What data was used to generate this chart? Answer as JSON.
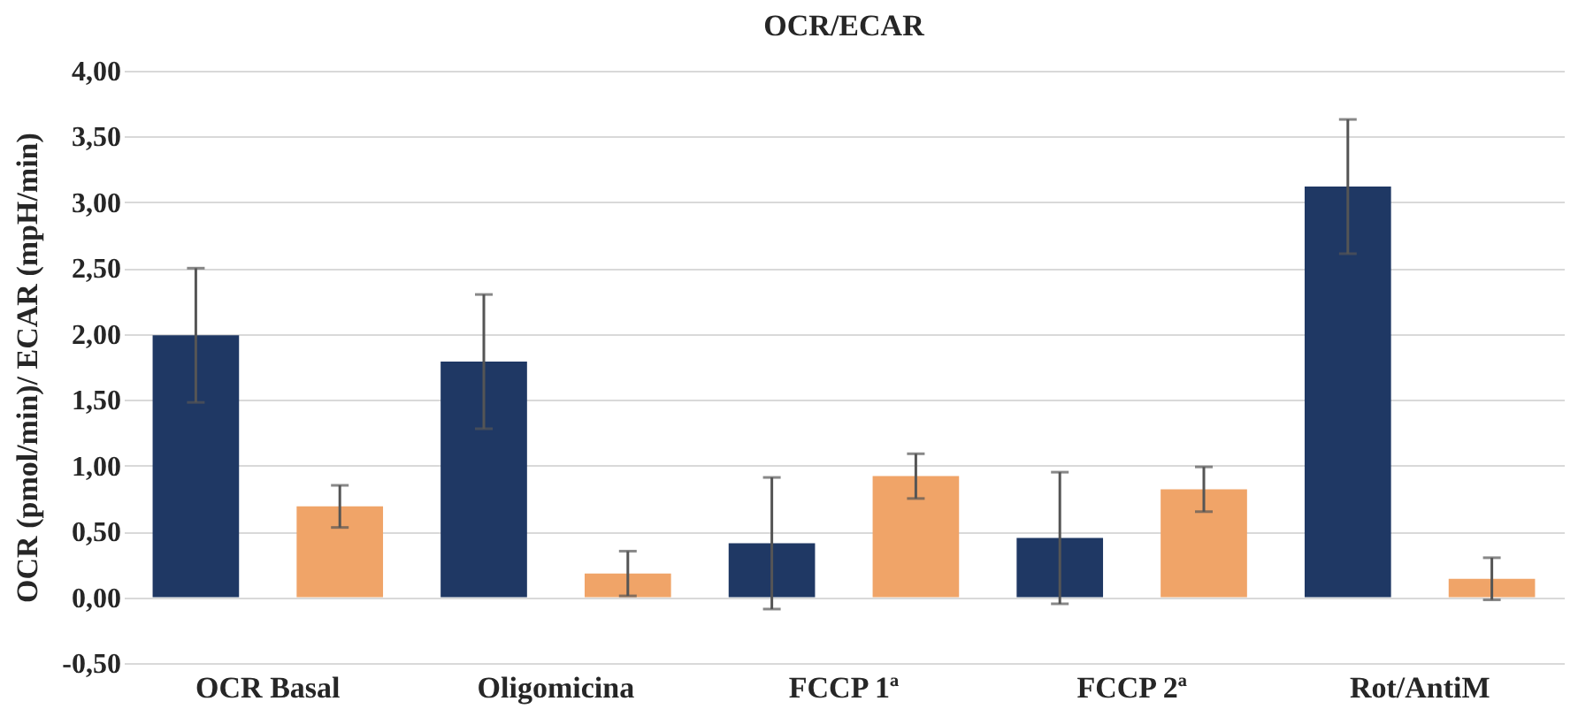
{
  "chart_data": {
    "type": "bar",
    "title": "OCR/ECAR",
    "ylabel": "OCR (pmol/min)/ ECAR (mpH/min)",
    "categories": [
      "OCR Basal",
      "Oligomicina",
      "FCCP 1ª",
      "FCCP 2ª",
      "Rot/AntiM"
    ],
    "series": [
      {
        "color": "#1f3864",
        "values": [
          1.99,
          1.79,
          0.41,
          0.45,
          3.12
        ],
        "errors": [
          0.51,
          0.51,
          0.5,
          0.5,
          0.51
        ]
      },
      {
        "color": "#f0a468",
        "values": [
          0.69,
          0.18,
          0.92,
          0.82,
          0.14
        ],
        "errors": [
          0.16,
          0.17,
          0.17,
          0.17,
          0.16
        ]
      }
    ],
    "ylim": [
      -0.5,
      4
    ],
    "yticks": [
      {
        "value": -0.5,
        "label": "-0,50"
      },
      {
        "value": 0,
        "label": "0,00"
      },
      {
        "value": 0.5,
        "label": "0,50"
      },
      {
        "value": 1,
        "label": "1,00"
      },
      {
        "value": 1.5,
        "label": "1,50"
      },
      {
        "value": 2,
        "label": "2,00"
      },
      {
        "value": 2.5,
        "label": "2,50"
      },
      {
        "value": 3,
        "label": "3,00"
      },
      {
        "value": 3.5,
        "label": "3,50"
      },
      {
        "value": 4,
        "label": "4,00"
      }
    ],
    "grid": "y"
  }
}
